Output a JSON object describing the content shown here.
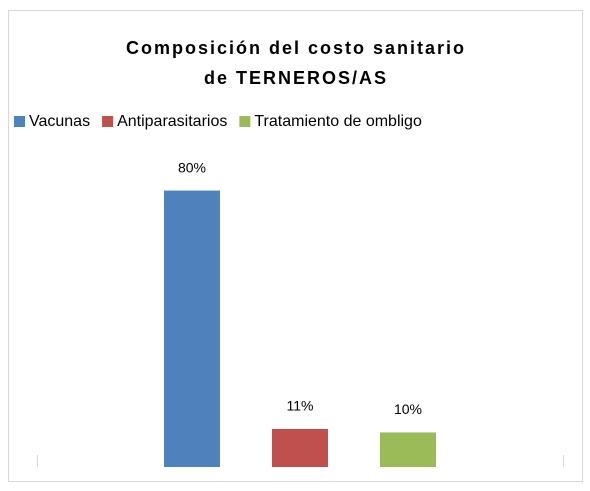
{
  "chart_data": {
    "type": "bar",
    "title": [
      "Composición del costo sanitario",
      "de TERNEROS/AS"
    ],
    "categories": [
      null
    ],
    "series": [
      {
        "name": "Vacunas",
        "color": "#4f81bd",
        "values": [
          80
        ],
        "value_labels": [
          "80%"
        ]
      },
      {
        "name": "Antiparasitarios",
        "color": "#c0504d",
        "values": [
          11
        ],
        "value_labels": [
          "11%"
        ]
      },
      {
        "name": "Tratamiento de ombligo",
        "color": "#9bbb59",
        "values": [
          10
        ],
        "value_labels": [
          "10%"
        ]
      }
    ],
    "ylim": [
      0,
      90
    ],
    "legend": "top"
  }
}
